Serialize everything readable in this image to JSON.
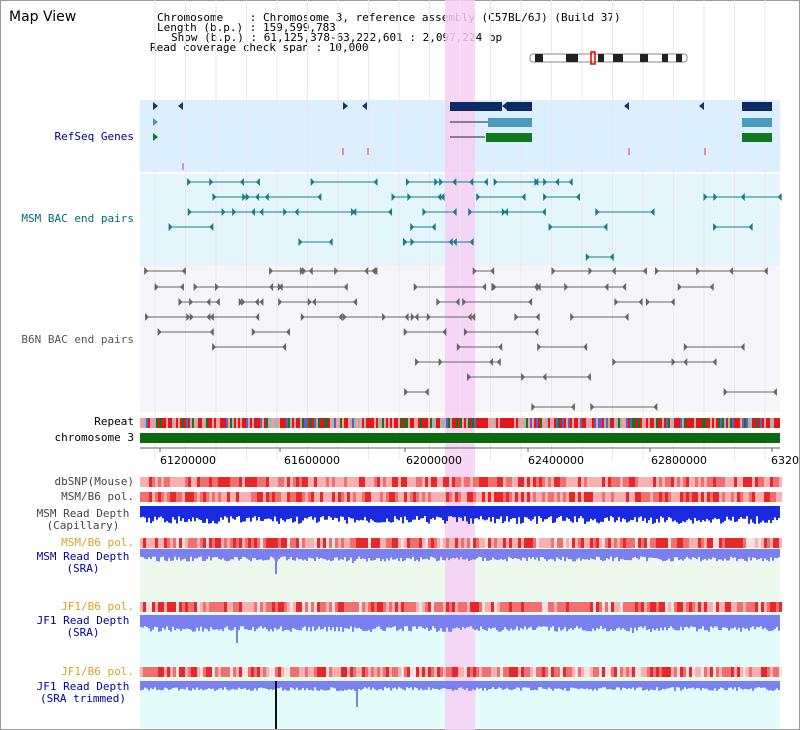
{
  "title": "Map View",
  "info": {
    "chromosome": "Chromosome    : Chromosome 3, reference assembly (C57BL/6J) (Build 37)",
    "length": "Length (b.p.) : 159,599,783",
    "show": "Show (b.p.) : 61,125,378-63,222,601 : 2,097,224 bp",
    "coverage": "Read coverage check span : 10,000"
  },
  "tracks": {
    "refseq": "RefSeq Genes",
    "msm_bac": "MSM BAC end pairs",
    "b6n_bac": "B6N BAC end pairs",
    "repeat": "Repeat",
    "chromosome": "chromosome 3",
    "dbsnp": "dbSNP(Mouse)",
    "msm_pol": "MSM/B6 pol.",
    "msm_depth_cap_1": "MSM Read Depth",
    "msm_depth_cap_2": "(Capillary)",
    "msm_pol2": "MSM/B6 pol.",
    "msm_depth_sra_1": "MSM Read Depth",
    "msm_depth_sra_2": "(SRA)",
    "jf1_pol": "JF1/B6 pol.",
    "jf1_depth_sra_1": "JF1 Read Depth",
    "jf1_depth_sra_2": "(SRA)",
    "jf1_pol2": "JF1/B6 pol.",
    "jf1_depth_trim_1": "JF1 Read Depth",
    "jf1_depth_trim_2": "(SRA trimmed)"
  },
  "axis_ticks": [
    "61200000",
    "61600000",
    "62000000",
    "62400000",
    "62800000",
    "6320"
  ],
  "colors": {
    "refseq_label": "#00008b",
    "msm_label": "#006b7a",
    "b6n_label": "#444444",
    "pol_orange": "#e0a020",
    "depth_blue": "#0000a0",
    "highlight": "#f4c8f0"
  }
}
